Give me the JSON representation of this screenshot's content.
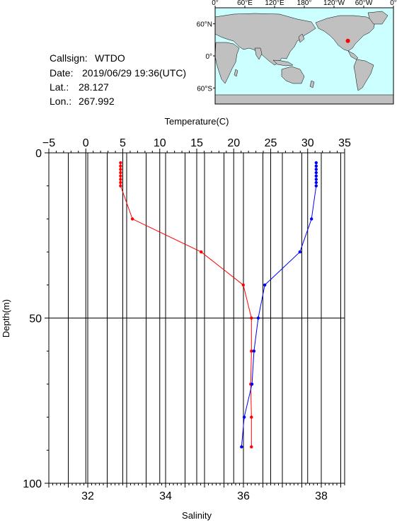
{
  "station": {
    "callsign_label": "Callsign:",
    "callsign": "WTDO",
    "date_label": "Date:",
    "date": "2019/06/29 19:36(UTC)",
    "lat_label": "Lat.:",
    "lat": "28.127",
    "lon_label": "Lon.:",
    "lon": "267.992"
  },
  "map": {
    "lon_ticks": [
      "0°",
      "60°E",
      "120°E",
      "180°",
      "120°W",
      "60°W",
      "0°"
    ],
    "lat_ticks": [
      "60°N",
      "0°",
      "60°S"
    ],
    "ocean_color": "#ccffff",
    "land_color": "#c0c0c0",
    "marker_color": "#ff0000",
    "marker_lon": 267.992,
    "marker_lat": 28.127
  },
  "chart_data": {
    "type": "line",
    "title": "",
    "ylabel": "Depth(m)",
    "ylim": [
      0,
      100
    ],
    "y_inverted": true,
    "y_ticks": [
      0,
      50,
      100
    ],
    "top_axis": {
      "label": "Temperature(C)",
      "range": [
        -5,
        35
      ],
      "ticks": [
        -5,
        0,
        5,
        10,
        15,
        20,
        25,
        30,
        35
      ]
    },
    "bottom_axis": {
      "label": "Salinity",
      "range": [
        31,
        38.6
      ],
      "ticks": [
        32,
        34,
        36,
        38
      ]
    },
    "grid": true,
    "series": [
      {
        "axis": "temperature",
        "color": "#ff0000",
        "depth": [
          3,
          4,
          5,
          6,
          7,
          8,
          9,
          10,
          20,
          30,
          40,
          50,
          60,
          70,
          80,
          89
        ],
        "values": [
          4.7,
          4.7,
          4.7,
          4.7,
          4.7,
          4.7,
          4.7,
          4.7,
          6.3,
          15.6,
          21.3,
          22.4,
          22.4,
          22.3,
          22.4,
          22.4
        ]
      },
      {
        "axis": "salinity",
        "color": "#0000ff",
        "depth": [
          3,
          4,
          5,
          6,
          7,
          8,
          9,
          10,
          20,
          30,
          40,
          50,
          60,
          70,
          80,
          89
        ],
        "values": [
          37.87,
          37.87,
          37.87,
          37.87,
          37.87,
          37.87,
          37.87,
          37.87,
          37.75,
          37.45,
          36.55,
          36.38,
          36.27,
          36.22,
          36.02,
          35.95
        ]
      }
    ]
  }
}
